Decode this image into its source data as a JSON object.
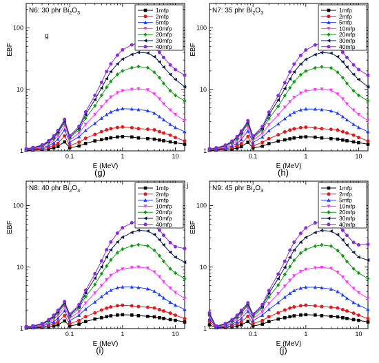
{
  "series_colors": [
    "#000000",
    "#e41a1c",
    "#1f3fff",
    "#ff33ff",
    "#159b15",
    "#0b1b4d",
    "#8a2be2"
  ],
  "series_markers": [
    "square",
    "circle",
    "triangle-up",
    "triangle-down",
    "diamond",
    "triangle-left",
    "circle"
  ],
  "chart_data": [
    {
      "type": "line",
      "title_prefix": "N6: 30 phr Bi",
      "title_sub": "2",
      "title_mid": "O",
      "title_sub2": "3",
      "caption": "(g)",
      "inner_letter": "g",
      "corner_mark": "",
      "xlabel": "E (MeV)",
      "ylabel": "EBF",
      "xscale": "log",
      "yscale": "log",
      "xlim": [
        0.015,
        15
      ],
      "ylim": [
        1,
        250
      ],
      "xticks": [
        0.1,
        1,
        10
      ],
      "xtick_labels": [
        "0.1",
        "1",
        "10"
      ],
      "yticks": [
        1,
        10,
        100
      ],
      "ytick_labels": [
        "1",
        "10",
        "100"
      ],
      "legend_position": "top-right",
      "x": [
        0.015,
        0.02,
        0.03,
        0.04,
        0.05,
        0.06,
        0.08,
        0.1,
        0.15,
        0.2,
        0.3,
        0.4,
        0.5,
        0.6,
        0.8,
        1.0,
        1.5,
        2.0,
        3.0,
        4.0,
        5.0,
        6.0,
        8.0,
        10.0,
        15.0
      ],
      "series": [
        {
          "name": "1mfp",
          "values": [
            1.02,
            1.03,
            1.05,
            1.08,
            1.12,
            1.18,
            1.4,
            1.12,
            1.2,
            1.32,
            1.45,
            1.52,
            1.58,
            1.63,
            1.68,
            1.7,
            1.68,
            1.62,
            1.58,
            1.55,
            1.5,
            1.46,
            1.4,
            1.36,
            1.28
          ]
        },
        {
          "name": "2mfp",
          "values": [
            1.03,
            1.05,
            1.08,
            1.14,
            1.22,
            1.32,
            1.75,
            1.22,
            1.38,
            1.6,
            1.85,
            2.05,
            2.2,
            2.3,
            2.4,
            2.45,
            2.38,
            2.3,
            2.25,
            2.2,
            2.05,
            1.95,
            1.8,
            1.65,
            1.45
          ]
        },
        {
          "name": "5mfp",
          "values": [
            1.04,
            1.07,
            1.12,
            1.22,
            1.35,
            1.55,
            2.2,
            1.38,
            1.7,
            2.15,
            2.8,
            3.4,
            3.9,
            4.3,
            4.7,
            4.85,
            4.8,
            4.7,
            4.5,
            4.1,
            3.6,
            3.2,
            2.7,
            2.4,
            2.05
          ]
        },
        {
          "name": "10mfp",
          "values": [
            1.05,
            1.09,
            1.16,
            1.3,
            1.48,
            1.75,
            2.6,
            1.5,
            1.95,
            2.7,
            3.9,
            5.2,
            6.4,
            7.5,
            8.8,
            9.5,
            10.0,
            10.2,
            9.8,
            8.4,
            7.0,
            5.8,
            4.6,
            3.9,
            3.1
          ]
        },
        {
          "name": "20mfp",
          "values": [
            1.06,
            1.11,
            1.2,
            1.37,
            1.6,
            1.95,
            2.9,
            1.62,
            2.2,
            3.4,
            5.4,
            8.0,
            10.8,
            13.5,
            17.5,
            20.0,
            22.5,
            23.5,
            22.5,
            19.0,
            15.5,
            12.5,
            9.5,
            8.0,
            6.5
          ]
        },
        {
          "name": "30mfp",
          "values": [
            1.07,
            1.12,
            1.23,
            1.42,
            1.68,
            2.05,
            3.05,
            1.7,
            2.35,
            3.9,
            6.8,
            10.5,
            15.0,
            19.5,
            26.0,
            31.0,
            37.0,
            40.0,
            39.0,
            34.0,
            28.0,
            23.0,
            17.5,
            14.5,
            11.0
          ]
        },
        {
          "name": "40mfp",
          "values": [
            1.08,
            1.13,
            1.25,
            1.46,
            1.74,
            2.15,
            3.25,
            1.76,
            2.5,
            4.3,
            8.0,
            13.0,
            19.5,
            26.0,
            36.0,
            44.0,
            53.0,
            57.0,
            55.0,
            48.0,
            40.0,
            33.0,
            25.0,
            21.0,
            17.0
          ]
        }
      ]
    },
    {
      "type": "line",
      "title_prefix": "N7: 35 phr Bi",
      "title_sub": "2",
      "title_mid": "O",
      "title_sub2": "3",
      "caption": "(h)",
      "inner_letter": "",
      "corner_mark": "",
      "xlabel": "E (MeV)",
      "ylabel": "EBF",
      "xscale": "log",
      "yscale": "log",
      "xlim": [
        0.015,
        15
      ],
      "ylim": [
        1,
        250
      ],
      "xticks": [
        0.1,
        1,
        10
      ],
      "xtick_labels": [
        "0.1",
        "1",
        "10"
      ],
      "yticks": [
        1,
        10,
        100
      ],
      "ytick_labels": [
        "1",
        "10",
        "100"
      ],
      "legend_position": "top-right",
      "x": [
        0.015,
        0.02,
        0.03,
        0.04,
        0.05,
        0.06,
        0.08,
        0.1,
        0.15,
        0.2,
        0.3,
        0.4,
        0.5,
        0.6,
        0.8,
        1.0,
        1.5,
        2.0,
        3.0,
        4.0,
        5.0,
        6.0,
        8.0,
        10.0,
        15.0
      ],
      "series": [
        {
          "name": "1mfp",
          "values": [
            1.02,
            1.03,
            1.05,
            1.07,
            1.11,
            1.17,
            1.38,
            1.11,
            1.19,
            1.31,
            1.44,
            1.51,
            1.57,
            1.62,
            1.67,
            1.69,
            1.67,
            1.62,
            1.58,
            1.55,
            1.5,
            1.46,
            1.4,
            1.36,
            1.28
          ]
        },
        {
          "name": "2mfp",
          "values": [
            1.03,
            1.05,
            1.08,
            1.13,
            1.21,
            1.31,
            1.7,
            1.21,
            1.37,
            1.58,
            1.83,
            2.03,
            2.18,
            2.28,
            2.38,
            2.43,
            2.36,
            2.3,
            2.24,
            2.18,
            2.05,
            1.95,
            1.8,
            1.65,
            1.45
          ]
        },
        {
          "name": "5mfp",
          "values": [
            1.04,
            1.07,
            1.11,
            1.21,
            1.33,
            1.52,
            2.1,
            1.36,
            1.68,
            2.12,
            2.75,
            3.35,
            3.85,
            4.25,
            4.65,
            4.8,
            4.78,
            4.68,
            4.48,
            4.1,
            3.6,
            3.2,
            2.7,
            2.4,
            2.05
          ]
        },
        {
          "name": "10mfp",
          "values": [
            1.05,
            1.08,
            1.15,
            1.28,
            1.45,
            1.7,
            2.45,
            1.48,
            1.92,
            2.65,
            3.85,
            5.1,
            6.3,
            7.4,
            8.7,
            9.4,
            9.9,
            10.1,
            9.7,
            8.4,
            7.0,
            5.8,
            4.6,
            3.9,
            3.1
          ]
        },
        {
          "name": "20mfp",
          "values": [
            1.06,
            1.1,
            1.19,
            1.35,
            1.57,
            1.9,
            2.75,
            1.6,
            2.18,
            3.35,
            5.3,
            7.9,
            10.6,
            13.3,
            17.3,
            19.8,
            22.3,
            23.3,
            22.3,
            19.0,
            15.5,
            12.5,
            9.5,
            8.0,
            6.5
          ]
        },
        {
          "name": "30mfp",
          "values": [
            1.07,
            1.11,
            1.22,
            1.4,
            1.65,
            2.0,
            2.9,
            1.68,
            2.32,
            3.85,
            6.7,
            10.3,
            14.8,
            19.3,
            25.8,
            30.8,
            36.8,
            39.8,
            38.8,
            34.0,
            28.0,
            23.0,
            17.5,
            14.5,
            11.0
          ]
        },
        {
          "name": "40mfp",
          "values": [
            1.08,
            1.12,
            1.24,
            1.44,
            1.71,
            2.1,
            3.1,
            1.74,
            2.48,
            4.25,
            7.9,
            12.8,
            19.3,
            25.8,
            35.8,
            43.8,
            52.8,
            56.8,
            54.8,
            48.0,
            40.0,
            33.0,
            25.0,
            21.0,
            17.0
          ]
        }
      ]
    },
    {
      "type": "line",
      "title_prefix": "N8: 40 phr Bi",
      "title_sub": "2",
      "title_mid": "O",
      "title_sub2": "3",
      "caption": "(i)",
      "inner_letter": "",
      "corner_mark": "j",
      "xlabel": "E (MeV)",
      "ylabel": "EBF",
      "xscale": "log",
      "yscale": "log",
      "xlim": [
        0.015,
        15
      ],
      "ylim": [
        1,
        250
      ],
      "xticks": [
        0.1,
        1,
        10
      ],
      "xtick_labels": [
        "0.1",
        "1",
        "10"
      ],
      "yticks": [
        1,
        10,
        100
      ],
      "ytick_labels": [
        "1",
        "10",
        "100"
      ],
      "legend_position": "top-right",
      "x": [
        0.015,
        0.02,
        0.03,
        0.04,
        0.05,
        0.06,
        0.08,
        0.1,
        0.15,
        0.2,
        0.3,
        0.4,
        0.5,
        0.6,
        0.8,
        1.0,
        1.5,
        2.0,
        3.0,
        4.0,
        5.0,
        6.0,
        8.0,
        10.0,
        15.0
      ],
      "series": [
        {
          "name": "1mfp",
          "values": [
            1.02,
            1.03,
            1.04,
            1.07,
            1.1,
            1.15,
            1.33,
            1.1,
            1.18,
            1.3,
            1.43,
            1.5,
            1.56,
            1.61,
            1.66,
            1.68,
            1.66,
            1.62,
            1.58,
            1.55,
            1.5,
            1.46,
            1.4,
            1.36,
            1.28
          ]
        },
        {
          "name": "2mfp",
          "values": [
            1.03,
            1.04,
            1.07,
            1.12,
            1.19,
            1.28,
            1.62,
            1.2,
            1.35,
            1.56,
            1.8,
            2.0,
            2.15,
            2.25,
            2.35,
            2.4,
            2.34,
            2.28,
            2.22,
            2.16,
            2.03,
            1.93,
            1.78,
            1.65,
            1.45
          ]
        },
        {
          "name": "5mfp",
          "values": [
            1.04,
            1.06,
            1.1,
            1.19,
            1.3,
            1.47,
            1.95,
            1.34,
            1.65,
            2.08,
            2.7,
            3.3,
            3.8,
            4.2,
            4.6,
            4.75,
            4.75,
            4.65,
            4.45,
            4.05,
            3.55,
            3.15,
            2.68,
            2.4,
            2.05
          ]
        },
        {
          "name": "10mfp",
          "values": [
            1.05,
            1.07,
            1.13,
            1.25,
            1.41,
            1.63,
            2.25,
            1.46,
            1.88,
            2.6,
            3.78,
            5.0,
            6.2,
            7.3,
            8.6,
            9.3,
            9.8,
            10.0,
            9.6,
            8.3,
            6.95,
            5.75,
            4.55,
            3.85,
            3.1
          ]
        },
        {
          "name": "20mfp",
          "values": [
            1.06,
            1.09,
            1.17,
            1.31,
            1.52,
            1.8,
            2.5,
            1.58,
            2.15,
            3.3,
            5.2,
            7.8,
            10.4,
            13.1,
            17.1,
            19.6,
            22.1,
            23.1,
            22.1,
            18.8,
            15.3,
            12.4,
            9.4,
            8.0,
            6.5
          ]
        },
        {
          "name": "30mfp",
          "values": [
            1.07,
            1.1,
            1.19,
            1.36,
            1.59,
            1.89,
            2.62,
            1.66,
            2.29,
            3.8,
            6.6,
            10.1,
            14.6,
            19.1,
            25.6,
            30.6,
            36.6,
            39.6,
            38.6,
            33.8,
            27.8,
            22.9,
            17.4,
            14.5,
            12.0
          ]
        },
        {
          "name": "40mfp",
          "values": [
            1.08,
            1.11,
            1.21,
            1.4,
            1.65,
            1.98,
            2.75,
            1.72,
            2.45,
            4.2,
            7.8,
            12.6,
            19.1,
            25.6,
            35.6,
            43.6,
            52.6,
            56.6,
            54.6,
            47.8,
            39.8,
            32.9,
            25.0,
            21.5,
            20.0
          ]
        }
      ]
    },
    {
      "type": "line",
      "title_prefix": "N9: 45 phr Bi",
      "title_sub": "2",
      "title_mid": "O",
      "title_sub2": "3",
      "caption": "(j)",
      "inner_letter": "",
      "corner_mark": "",
      "xlabel": "E (MeV)",
      "ylabel": "EBF",
      "xscale": "log",
      "yscale": "log",
      "xlim": [
        0.015,
        15
      ],
      "ylim": [
        1,
        250
      ],
      "xticks": [
        0.1,
        1,
        10
      ],
      "xtick_labels": [
        "0.1",
        "1",
        "10"
      ],
      "yticks": [
        1,
        10,
        100
      ],
      "ytick_labels": [
        "1",
        "10",
        "100"
      ],
      "legend_position": "top-right",
      "x": [
        0.015,
        0.02,
        0.03,
        0.04,
        0.05,
        0.06,
        0.08,
        0.1,
        0.15,
        0.2,
        0.3,
        0.4,
        0.5,
        0.6,
        0.8,
        1.0,
        1.5,
        2.0,
        3.0,
        4.0,
        5.0,
        6.0,
        8.0,
        10.0,
        15.0
      ],
      "series": [
        {
          "name": "1mfp",
          "values": [
            1.15,
            1.03,
            1.04,
            1.07,
            1.1,
            1.15,
            1.3,
            1.1,
            1.18,
            1.3,
            1.43,
            1.5,
            1.56,
            1.61,
            1.66,
            1.68,
            1.66,
            1.62,
            1.58,
            1.55,
            1.5,
            1.46,
            1.4,
            1.36,
            1.28
          ]
        },
        {
          "name": "2mfp",
          "values": [
            1.3,
            1.04,
            1.07,
            1.12,
            1.19,
            1.28,
            1.58,
            1.2,
            1.35,
            1.56,
            1.8,
            2.0,
            2.15,
            2.25,
            2.35,
            2.4,
            2.34,
            2.28,
            2.22,
            2.16,
            2.03,
            1.93,
            1.78,
            1.65,
            1.45
          ]
        },
        {
          "name": "5mfp",
          "values": [
            1.45,
            1.05,
            1.1,
            1.19,
            1.3,
            1.47,
            1.9,
            1.34,
            1.65,
            2.05,
            2.65,
            3.25,
            3.75,
            4.15,
            4.55,
            4.7,
            4.7,
            4.6,
            4.4,
            4.0,
            3.52,
            3.12,
            2.66,
            2.4,
            2.05
          ]
        },
        {
          "name": "10mfp",
          "values": [
            1.55,
            1.06,
            1.13,
            1.25,
            1.41,
            1.63,
            2.15,
            1.46,
            1.88,
            2.55,
            3.7,
            4.9,
            6.1,
            7.2,
            8.5,
            9.2,
            9.7,
            9.9,
            9.5,
            8.2,
            6.9,
            5.7,
            4.5,
            3.85,
            3.1
          ]
        },
        {
          "name": "20mfp",
          "values": [
            1.65,
            1.08,
            1.17,
            1.31,
            1.52,
            1.8,
            2.38,
            1.58,
            2.15,
            3.25,
            5.1,
            7.6,
            10.2,
            12.9,
            16.9,
            19.4,
            21.9,
            22.9,
            21.9,
            18.6,
            15.2,
            12.3,
            9.4,
            8.0,
            6.5
          ]
        },
        {
          "name": "30mfp",
          "values": [
            1.72,
            1.09,
            1.19,
            1.36,
            1.59,
            1.89,
            2.5,
            1.66,
            2.29,
            3.75,
            6.5,
            9.9,
            14.4,
            18.9,
            25.4,
            30.4,
            36.4,
            39.4,
            38.4,
            33.6,
            27.6,
            22.8,
            17.4,
            14.5,
            13.0
          ]
        },
        {
          "name": "40mfp",
          "values": [
            1.8,
            1.1,
            1.21,
            1.4,
            1.65,
            1.98,
            2.62,
            1.72,
            2.45,
            4.15,
            7.7,
            12.4,
            18.9,
            25.4,
            35.4,
            43.4,
            52.4,
            56.4,
            54.4,
            47.6,
            39.6,
            32.8,
            25.2,
            23.0,
            23.5
          ]
        }
      ]
    }
  ]
}
